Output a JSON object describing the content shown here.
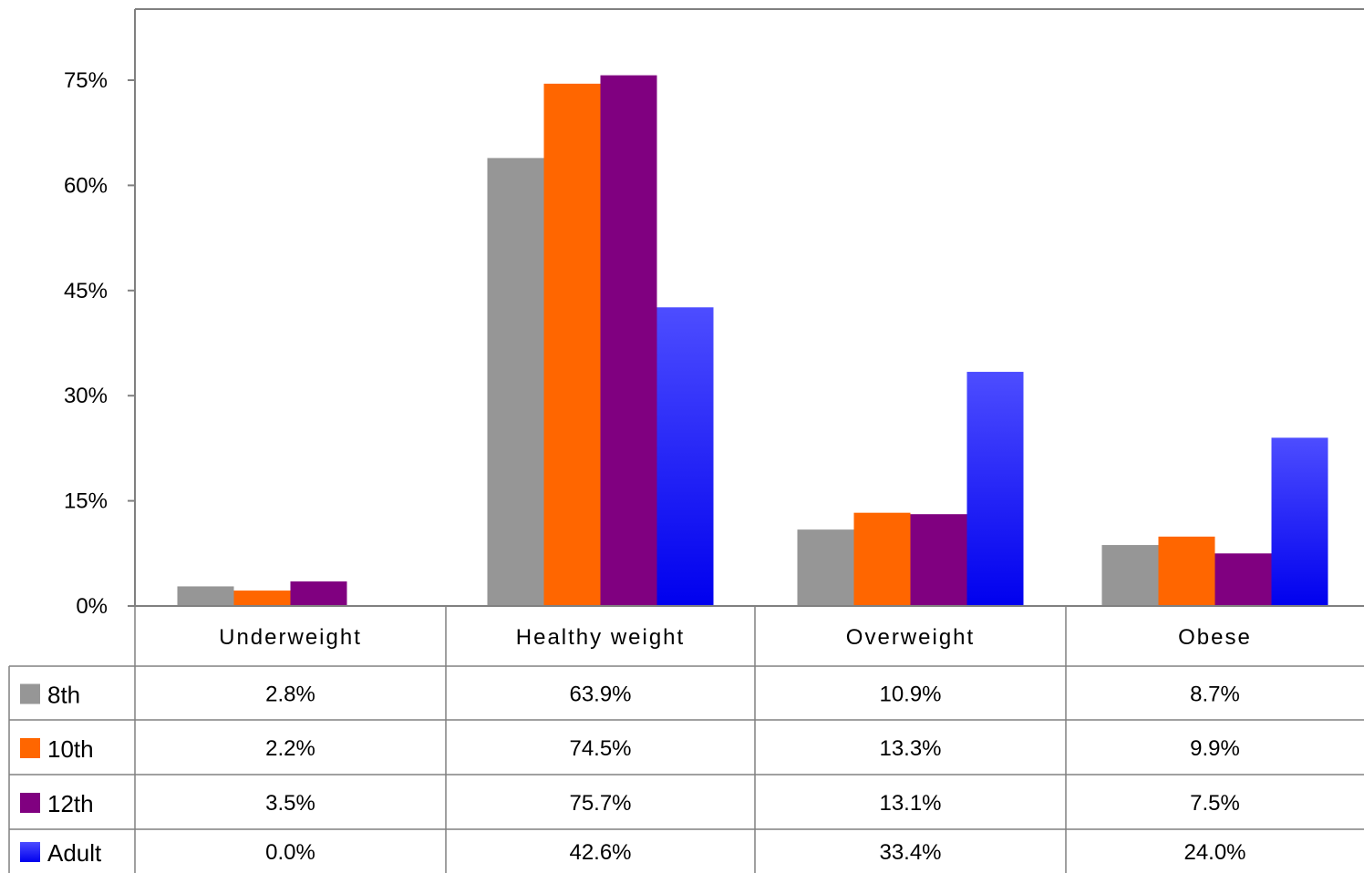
{
  "chart_data": {
    "type": "bar",
    "categories": [
      "Underweight",
      "Healthy weight",
      "Overweight",
      "Obese"
    ],
    "series": [
      {
        "name": "8th",
        "values": [
          2.8,
          63.9,
          10.9,
          8.7
        ],
        "labels": [
          "2.8%",
          "63.9%",
          "10.9%",
          "8.7%"
        ],
        "color": "#969696"
      },
      {
        "name": "10th",
        "values": [
          2.2,
          74.5,
          13.3,
          9.9
        ],
        "labels": [
          "2.2%",
          "74.5%",
          "13.3%",
          "9.9%"
        ],
        "color": "#ff6600"
      },
      {
        "name": "12th",
        "values": [
          3.5,
          75.7,
          13.1,
          7.5
        ],
        "labels": [
          "3.5%",
          "75.7%",
          "13.1%",
          "7.5%"
        ],
        "color": "#800080"
      },
      {
        "name": "Adult",
        "values": [
          0.0,
          42.6,
          33.4,
          24.0
        ],
        "labels": [
          "0.0%",
          "42.6%",
          "33.4%",
          "24.0%"
        ],
        "color": "#3333ff",
        "gradient": [
          "#4d4dff",
          "#0000ee"
        ]
      }
    ],
    "yticks": [
      "0%",
      "15%",
      "30%",
      "45%",
      "60%",
      "75%"
    ],
    "ytick_values": [
      0,
      15,
      30,
      45,
      60,
      75
    ],
    "ylim": [
      0,
      85
    ],
    "title": "",
    "xlabel": "",
    "ylabel": "",
    "grid": false,
    "legend": "data-table"
  }
}
